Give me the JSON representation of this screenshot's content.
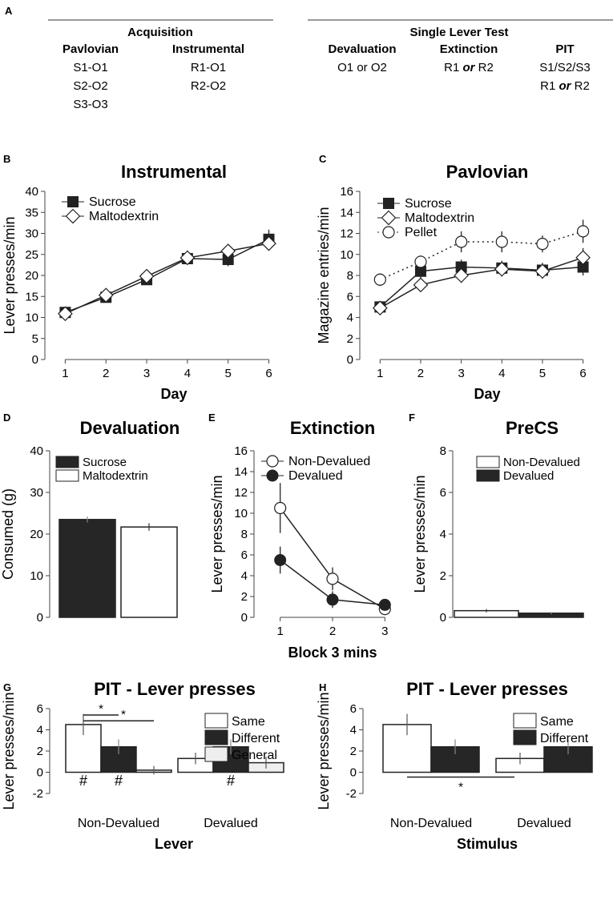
{
  "panel_a": {
    "letter": "A",
    "acq": {
      "heading": "Acquisition",
      "col1": "Pavlovian",
      "col2": "Instrumental",
      "c1": [
        "S1-O1",
        "S2-O2",
        "S3-O3"
      ],
      "c2": [
        "R1-O1",
        "R2-O2"
      ]
    },
    "slt": {
      "heading": "Single Lever Test",
      "col1": "Devaluation",
      "col2": "Extinction",
      "col3": "PIT",
      "c1": "O1 or O2",
      "c2": {
        "a": "R1 ",
        "or": "or",
        "b": " R2"
      },
      "c3_line1": "S1/S2/S3",
      "c3_line2": {
        "a": "R1 ",
        "or": "or",
        "b": " R2"
      }
    }
  },
  "chart_data": [
    {
      "id": "B",
      "letter": "B",
      "type": "line",
      "title": "Instrumental",
      "xlabel": "Day",
      "ylabel": "Lever presses/min",
      "x": [
        1,
        2,
        3,
        4,
        5,
        6
      ],
      "xlim": [
        0.5,
        6.6
      ],
      "ylim": [
        0,
        40
      ],
      "yticks": [
        0,
        5,
        10,
        15,
        20,
        25,
        30,
        35,
        40
      ],
      "series": [
        {
          "name": "Sucrose",
          "marker": "square",
          "values": [
            11.2,
            14.8,
            19.0,
            24.0,
            23.8,
            28.6
          ],
          "err": [
            0.8,
            0.9,
            1.0,
            1.2,
            1.6,
            2.3
          ]
        },
        {
          "name": "Maltodextrin",
          "marker": "diamond",
          "values": [
            10.9,
            15.3,
            19.8,
            24.2,
            25.8,
            27.6
          ],
          "err": [
            0.7,
            0.9,
            1.0,
            1.1,
            1.2,
            1.3
          ]
        }
      ]
    },
    {
      "id": "C",
      "letter": "C",
      "type": "line",
      "title": "Pavlovian",
      "xlabel": "Day",
      "ylabel": "Magazine entries/min",
      "x": [
        1,
        2,
        3,
        4,
        5,
        6
      ],
      "xlim": [
        0.5,
        6.6
      ],
      "ylim": [
        0,
        16
      ],
      "yticks": [
        0,
        2,
        4,
        6,
        8,
        10,
        12,
        14,
        16
      ],
      "series": [
        {
          "name": "Sucrose",
          "marker": "square",
          "values": [
            5.0,
            8.4,
            8.8,
            8.7,
            8.5,
            8.8
          ],
          "err": [
            0.4,
            0.7,
            0.7,
            0.7,
            0.7,
            0.8
          ]
        },
        {
          "name": "Maltodextrin",
          "marker": "diamond",
          "values": [
            4.9,
            7.1,
            8.0,
            8.6,
            8.4,
            9.7
          ],
          "err": [
            0.4,
            0.6,
            0.7,
            0.7,
            0.7,
            0.9
          ]
        },
        {
          "name": "Pellet",
          "marker": "circle",
          "dashed": true,
          "values": [
            7.6,
            9.3,
            11.2,
            11.2,
            11.0,
            12.2
          ],
          "err": [
            0.6,
            0.6,
            1.0,
            1.0,
            0.8,
            1.1
          ]
        }
      ]
    },
    {
      "id": "D",
      "letter": "D",
      "type": "bar",
      "title": "Devaluation",
      "xlabel": "",
      "ylabel": "Consumed (g)",
      "categories": [
        "Sucrose",
        "Maltodextrin"
      ],
      "values": [
        23.5,
        21.7
      ],
      "err": [
        0.7,
        0.9
      ],
      "fills": [
        "#262626",
        "#ffffff"
      ],
      "ylim": [
        0,
        40
      ],
      "yticks": [
        0,
        10,
        20,
        30,
        40
      ]
    },
    {
      "id": "E",
      "letter": "E",
      "type": "line",
      "title": "Extinction",
      "xlabel": "Block 3 mins",
      "ylabel": "Lever presses/min",
      "x": [
        1,
        2,
        3
      ],
      "xlim": [
        0.5,
        3.5
      ],
      "ylim": [
        0,
        16
      ],
      "yticks": [
        0,
        2,
        4,
        6,
        8,
        10,
        12,
        14,
        16
      ],
      "series": [
        {
          "name": "Non-Devalued",
          "marker": "circle-open",
          "values": [
            10.5,
            3.7,
            0.8
          ],
          "err": [
            2.4,
            1.1,
            0.3
          ]
        },
        {
          "name": "Devalued",
          "marker": "circle-filled",
          "values": [
            5.5,
            1.7,
            1.2
          ],
          "err": [
            1.3,
            0.8,
            0.3
          ]
        }
      ]
    },
    {
      "id": "F",
      "letter": "F",
      "type": "bar",
      "title": "PreCS",
      "xlabel": "",
      "ylabel": "Lever presses/min",
      "categories": [
        "Non-Devalued",
        "Devalued"
      ],
      "values": [
        0.32,
        0.2
      ],
      "err": [
        0.08,
        0.05
      ],
      "fills": [
        "#ffffff",
        "#262626"
      ],
      "ylim": [
        0,
        8
      ],
      "yticks": [
        0,
        2,
        4,
        6,
        8
      ]
    },
    {
      "id": "G",
      "letter": "G",
      "type": "bar",
      "title": "PIT - Lever presses",
      "xlabel": "Lever",
      "ylabel": "Lever presses/min",
      "categories": [
        "Non-Devalued",
        "Devalued"
      ],
      "ylim": [
        -2,
        6
      ],
      "yticks": [
        -2,
        0,
        2,
        4,
        6
      ],
      "series": [
        {
          "name": "Same",
          "fill": "#ffffff",
          "values": [
            4.5,
            1.3
          ],
          "err": [
            1.0,
            0.55
          ]
        },
        {
          "name": "Different",
          "fill": "#262626",
          "values": [
            2.4,
            2.4
          ],
          "err": [
            0.7,
            0.7
          ]
        },
        {
          "name": "General",
          "fill": "#eeeeee",
          "values": [
            0.2,
            0.9
          ],
          "err": [
            0.4,
            0.55
          ]
        }
      ],
      "annotations": {
        "star": "*",
        "hash": "#"
      }
    },
    {
      "id": "H",
      "letter": "H",
      "type": "bar",
      "title": "PIT - Lever presses",
      "xlabel": "Stimulus",
      "ylabel": "Lever presses/min",
      "categories": [
        "Non-Devalued",
        "Devalued"
      ],
      "ylim": [
        -2,
        6
      ],
      "yticks": [
        -2,
        0,
        2,
        4,
        6
      ],
      "series": [
        {
          "name": "Same",
          "fill": "#ffffff",
          "values": [
            4.5,
            1.3
          ],
          "err": [
            1.0,
            0.55
          ]
        },
        {
          "name": "Different",
          "fill": "#262626",
          "values": [
            2.4,
            2.4
          ],
          "err": [
            0.7,
            0.7
          ]
        }
      ],
      "annotations": {
        "star": "*"
      }
    }
  ]
}
